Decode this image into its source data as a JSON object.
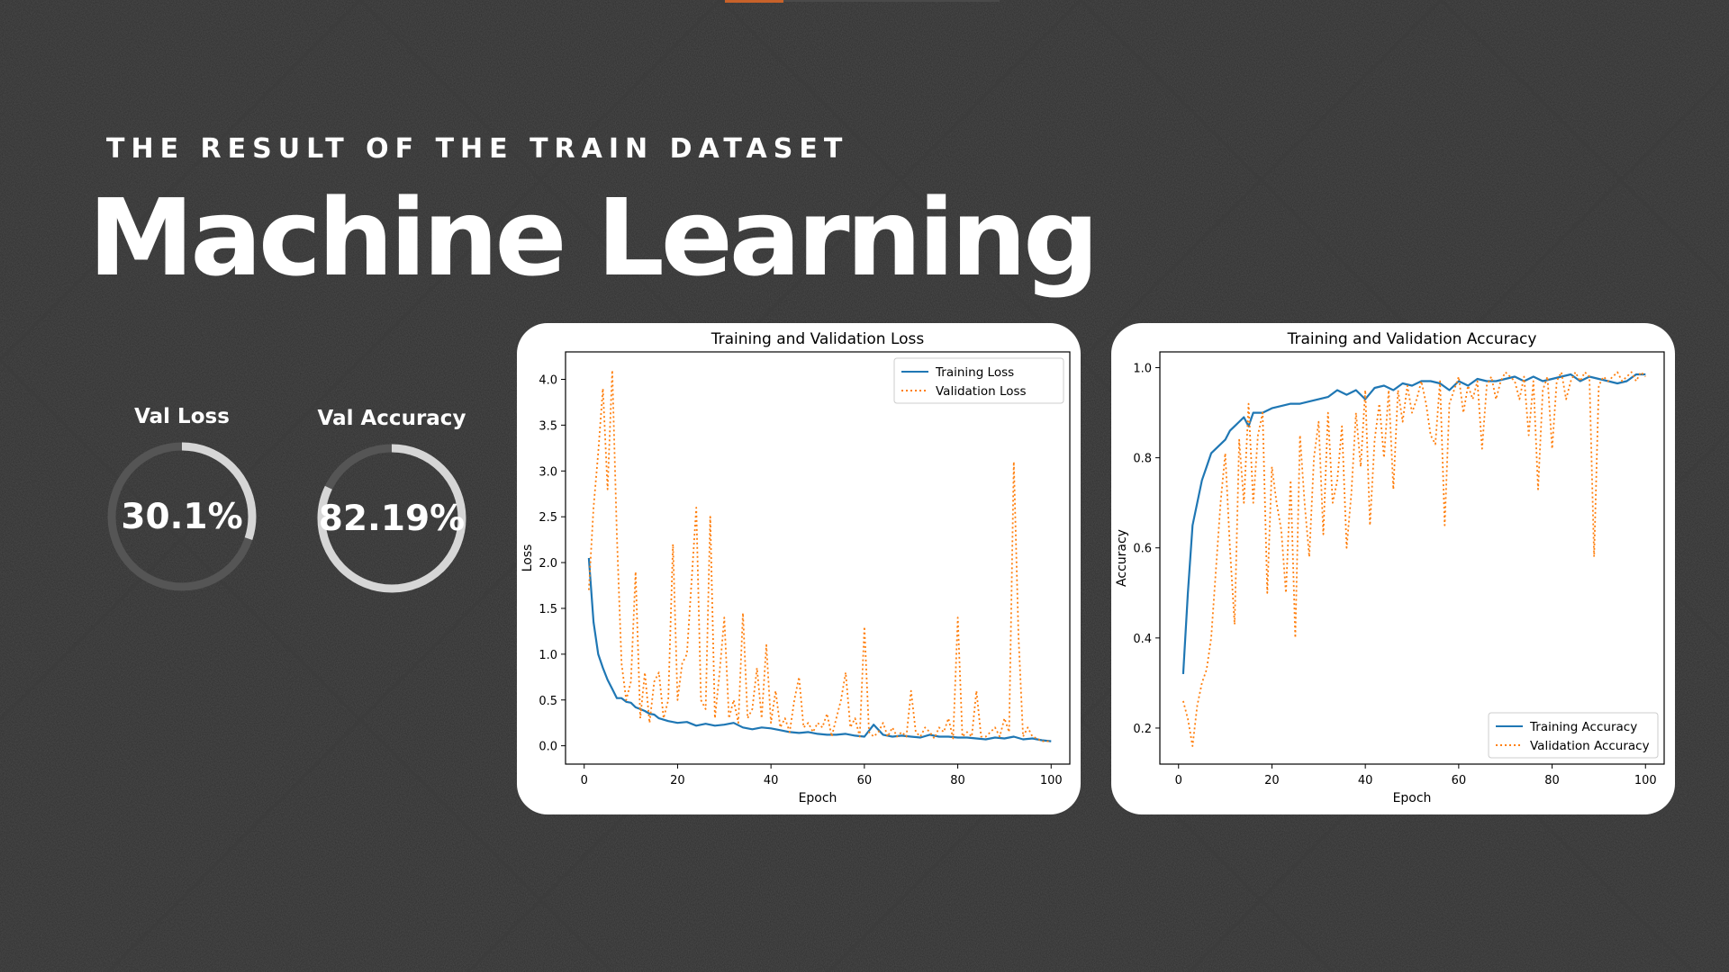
{
  "header": {
    "subtitle": "THE RESULT OF THE TRAIN DATASET",
    "title": "Machine Learning"
  },
  "kpis": [
    {
      "label": "Val Loss",
      "value": "30.1%",
      "fill": 0.301
    },
    {
      "label": "Val Accuracy",
      "value": "82.19%",
      "fill": 0.8219
    }
  ],
  "colors": {
    "background": "#2d2d2d",
    "ring_track": "#555555",
    "ring_fill": "#d6d6d6",
    "training": "#1f77b4",
    "validation": "#ff7f0e",
    "accent": "#c8622a"
  },
  "chart_data": [
    {
      "type": "line",
      "title": "Training and Validation Loss",
      "xlabel": "Epoch",
      "ylabel": "Loss",
      "xlim": [
        -4,
        104
      ],
      "ylim": [
        -0.2,
        4.3
      ],
      "xticks": [
        0,
        20,
        40,
        60,
        80,
        100
      ],
      "yticks": [
        0.0,
        0.5,
        1.0,
        1.5,
        2.0,
        2.5,
        3.0,
        3.5,
        4.0
      ],
      "ytick_labels": [
        "0.0",
        "0.5",
        "1.0",
        "1.5",
        "2.0",
        "2.5",
        "3.0",
        "3.5",
        "4.0"
      ],
      "legend_position": "upper right",
      "series": [
        {
          "name": "Training Loss",
          "style": "solid",
          "x": [
            1,
            2,
            3,
            4,
            5,
            6,
            7,
            8,
            9,
            10,
            11,
            12,
            13,
            14,
            15,
            16,
            18,
            20,
            22,
            24,
            26,
            28,
            30,
            32,
            34,
            36,
            38,
            40,
            42,
            44,
            46,
            48,
            50,
            52,
            54,
            56,
            58,
            60,
            62,
            64,
            66,
            68,
            70,
            72,
            74,
            76,
            78,
            80,
            82,
            84,
            86,
            88,
            90,
            92,
            94,
            96,
            98,
            100
          ],
          "y": [
            2.05,
            1.35,
            1.0,
            0.85,
            0.72,
            0.62,
            0.52,
            0.52,
            0.48,
            0.47,
            0.42,
            0.4,
            0.38,
            0.35,
            0.34,
            0.3,
            0.27,
            0.25,
            0.26,
            0.22,
            0.24,
            0.22,
            0.23,
            0.25,
            0.2,
            0.18,
            0.2,
            0.19,
            0.17,
            0.15,
            0.14,
            0.15,
            0.13,
            0.12,
            0.12,
            0.13,
            0.11,
            0.1,
            0.23,
            0.12,
            0.1,
            0.11,
            0.1,
            0.09,
            0.12,
            0.1,
            0.1,
            0.09,
            0.09,
            0.08,
            0.07,
            0.09,
            0.08,
            0.1,
            0.07,
            0.08,
            0.06,
            0.05
          ]
        },
        {
          "name": "Validation Loss",
          "style": "dotted",
          "x": [
            1,
            2,
            3,
            4,
            5,
            6,
            7,
            8,
            9,
            10,
            11,
            12,
            13,
            14,
            15,
            16,
            17,
            18,
            19,
            20,
            21,
            22,
            23,
            24,
            25,
            26,
            27,
            28,
            29,
            30,
            31,
            32,
            33,
            34,
            35,
            36,
            37,
            38,
            39,
            40,
            41,
            42,
            43,
            44,
            45,
            46,
            47,
            48,
            49,
            50,
            51,
            52,
            53,
            54,
            55,
            56,
            57,
            58,
            59,
            60,
            61,
            62,
            63,
            64,
            65,
            66,
            67,
            68,
            69,
            70,
            71,
            72,
            73,
            74,
            75,
            76,
            77,
            78,
            79,
            80,
            81,
            82,
            83,
            84,
            85,
            86,
            87,
            88,
            89,
            90,
            91,
            92,
            93,
            94,
            95,
            96,
            97,
            98,
            99,
            100
          ],
          "y": [
            1.7,
            2.6,
            3.2,
            3.9,
            2.8,
            4.1,
            2.3,
            0.9,
            0.5,
            0.7,
            1.9,
            0.3,
            0.8,
            0.25,
            0.7,
            0.8,
            0.3,
            0.5,
            2.2,
            0.5,
            0.9,
            1.0,
            1.8,
            2.6,
            0.5,
            0.4,
            2.5,
            0.3,
            0.8,
            1.4,
            0.3,
            0.5,
            0.25,
            1.45,
            0.3,
            0.4,
            0.85,
            0.3,
            1.1,
            0.25,
            0.6,
            0.2,
            0.3,
            0.15,
            0.5,
            0.75,
            0.2,
            0.25,
            0.15,
            0.25,
            0.2,
            0.35,
            0.1,
            0.3,
            0.5,
            0.8,
            0.2,
            0.3,
            0.1,
            1.3,
            0.15,
            0.1,
            0.15,
            0.25,
            0.1,
            0.2,
            0.1,
            0.15,
            0.1,
            0.6,
            0.15,
            0.1,
            0.2,
            0.15,
            0.08,
            0.2,
            0.15,
            0.3,
            0.08,
            1.4,
            0.1,
            0.15,
            0.1,
            0.6,
            0.1,
            0.1,
            0.15,
            0.2,
            0.1,
            0.3,
            0.15,
            3.1,
            1.2,
            0.1,
            0.2,
            0.1,
            0.08,
            0.05,
            0.05,
            0.05
          ]
        }
      ]
    },
    {
      "type": "line",
      "title": "Training and Validation Accuracy",
      "xlabel": "Epoch",
      "ylabel": "Accuracy",
      "xlim": [
        -4,
        104
      ],
      "ylim": [
        0.12,
        1.035
      ],
      "xticks": [
        0,
        20,
        40,
        60,
        80,
        100
      ],
      "yticks": [
        0.2,
        0.4,
        0.6,
        0.8,
        1.0
      ],
      "ytick_labels": [
        "0.2",
        "0.4",
        "0.6",
        "0.8",
        "1.0"
      ],
      "legend_position": "lower right",
      "series": [
        {
          "name": "Training Accuracy",
          "style": "solid",
          "x": [
            1,
            2,
            3,
            4,
            5,
            6,
            7,
            8,
            9,
            10,
            11,
            12,
            13,
            14,
            15,
            16,
            17,
            18,
            20,
            22,
            24,
            26,
            28,
            30,
            32,
            34,
            36,
            38,
            40,
            42,
            44,
            46,
            48,
            50,
            52,
            54,
            56,
            58,
            60,
            62,
            64,
            66,
            68,
            70,
            72,
            74,
            76,
            78,
            80,
            82,
            84,
            86,
            88,
            90,
            92,
            94,
            96,
            98,
            100
          ],
          "y": [
            0.32,
            0.5,
            0.65,
            0.7,
            0.75,
            0.78,
            0.81,
            0.82,
            0.83,
            0.84,
            0.86,
            0.87,
            0.88,
            0.89,
            0.87,
            0.9,
            0.9,
            0.9,
            0.91,
            0.915,
            0.92,
            0.92,
            0.925,
            0.93,
            0.935,
            0.95,
            0.94,
            0.95,
            0.93,
            0.955,
            0.96,
            0.95,
            0.965,
            0.96,
            0.97,
            0.97,
            0.965,
            0.95,
            0.97,
            0.96,
            0.975,
            0.97,
            0.97,
            0.975,
            0.98,
            0.97,
            0.98,
            0.97,
            0.975,
            0.98,
            0.985,
            0.97,
            0.98,
            0.975,
            0.97,
            0.965,
            0.97,
            0.985,
            0.985
          ]
        },
        {
          "name": "Validation Accuracy",
          "style": "dotted",
          "x": [
            1,
            2,
            3,
            4,
            5,
            6,
            7,
            8,
            9,
            10,
            11,
            12,
            13,
            14,
            15,
            16,
            17,
            18,
            19,
            20,
            21,
            22,
            23,
            24,
            25,
            26,
            27,
            28,
            29,
            30,
            31,
            32,
            33,
            34,
            35,
            36,
            37,
            38,
            39,
            40,
            41,
            42,
            43,
            44,
            45,
            46,
            47,
            48,
            49,
            50,
            51,
            52,
            53,
            54,
            55,
            56,
            57,
            58,
            59,
            60,
            61,
            62,
            63,
            64,
            65,
            66,
            67,
            68,
            69,
            70,
            71,
            72,
            73,
            74,
            75,
            76,
            77,
            78,
            79,
            80,
            81,
            82,
            83,
            84,
            85,
            86,
            87,
            88,
            89,
            90,
            91,
            92,
            93,
            94,
            95,
            96,
            97,
            98,
            99,
            100
          ],
          "y": [
            0.26,
            0.22,
            0.16,
            0.25,
            0.3,
            0.33,
            0.4,
            0.55,
            0.7,
            0.81,
            0.6,
            0.43,
            0.84,
            0.7,
            0.92,
            0.7,
            0.85,
            0.9,
            0.5,
            0.78,
            0.7,
            0.64,
            0.5,
            0.75,
            0.4,
            0.85,
            0.7,
            0.58,
            0.8,
            0.88,
            0.63,
            0.9,
            0.7,
            0.75,
            0.87,
            0.6,
            0.72,
            0.9,
            0.78,
            0.95,
            0.65,
            0.84,
            0.92,
            0.8,
            0.95,
            0.73,
            0.95,
            0.88,
            0.96,
            0.9,
            0.93,
            0.97,
            0.92,
            0.85,
            0.83,
            0.97,
            0.65,
            0.92,
            0.95,
            0.98,
            0.9,
            0.96,
            0.93,
            0.97,
            0.82,
            0.96,
            0.98,
            0.93,
            0.97,
            0.99,
            0.98,
            0.97,
            0.93,
            0.98,
            0.85,
            0.97,
            0.73,
            0.95,
            0.98,
            0.82,
            0.97,
            0.99,
            0.93,
            0.97,
            0.99,
            0.97,
            0.99,
            0.98,
            0.58,
            0.96,
            0.98,
            0.97,
            0.98,
            0.99,
            0.97,
            0.98,
            0.99,
            0.97,
            0.99,
            0.98
          ]
        }
      ]
    }
  ]
}
